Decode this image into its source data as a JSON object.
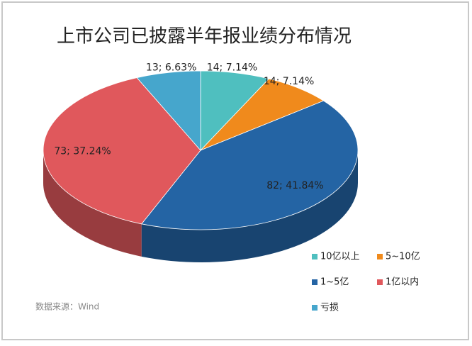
{
  "chart_data": {
    "type": "pie",
    "title": "上市公司已披露半年报业绩分布情况",
    "categories": [
      "10亿以上",
      "5~10亿",
      "1~5亿",
      "1亿以内",
      "亏损"
    ],
    "values": [
      14,
      14,
      82,
      73,
      13
    ],
    "value_labels": [
      "14; 7.14%",
      "14; 7.14%",
      "82; 41.84%",
      "73; 37.24%",
      "13; 6.63%"
    ],
    "colors": [
      "#4fbfbf",
      "#f08a1c",
      "#2464a4",
      "#e0585c",
      "#46a6cc"
    ],
    "legend": "bottom-right",
    "source": "数据来源：Wind"
  }
}
